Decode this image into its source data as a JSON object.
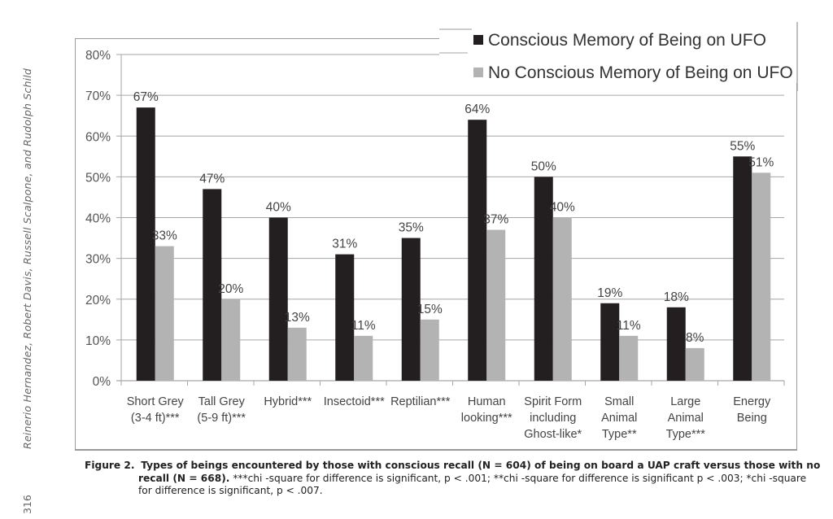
{
  "page": {
    "running_head": "Reinerio Hernandez, Robert Davis, Russell Scalpone, and Rudolph Schild",
    "page_number": "316"
  },
  "chart_data": {
    "type": "bar",
    "title": "",
    "xlabel": "",
    "ylabel": "",
    "ylim": [
      0,
      80
    ],
    "yticks": [
      0,
      10,
      20,
      30,
      40,
      50,
      60,
      70,
      80
    ],
    "ytick_labels": [
      "0%",
      "10%",
      "20%",
      "30%",
      "40%",
      "50%",
      "60%",
      "70%",
      "80%"
    ],
    "grid": true,
    "legend_position": "top-right",
    "categories": [
      [
        "Short Grey",
        "(3-4 ft)***"
      ],
      [
        "Tall Grey",
        "(5-9 ft)***"
      ],
      [
        "Hybrid***"
      ],
      [
        "Insectoid***"
      ],
      [
        "Reptilian***"
      ],
      [
        "Human",
        "looking***"
      ],
      [
        "Spirit Form",
        "including",
        "Ghost-like*"
      ],
      [
        "Small",
        "Animal",
        "Type**"
      ],
      [
        "Large",
        "Animal",
        "Type***"
      ],
      [
        "Energy",
        "Being"
      ]
    ],
    "series": [
      {
        "name": "Conscious Memory of Being on UFO",
        "color": "#231f20",
        "values": [
          67,
          47,
          40,
          31,
          35,
          64,
          50,
          19,
          18,
          55
        ],
        "labels": [
          "67%",
          "47%",
          "40%",
          "31%",
          "35%",
          "64%",
          "50%",
          "19%",
          "18%",
          "55%"
        ]
      },
      {
        "name": "No Conscious Memory of Being on UFO",
        "color": "#b3b3b3",
        "values": [
          33,
          20,
          13,
          11,
          15,
          37,
          40,
          11,
          8,
          51
        ],
        "labels": [
          "33%",
          "20%",
          "13%",
          "11%",
          "15%",
          "37%",
          "40%",
          "11%",
          "8%",
          "51%"
        ]
      }
    ]
  },
  "caption": {
    "label": "Figure 2.",
    "bold_line1": "Types of beings encountered by those with conscious recall (N = 604) of being on board a UAP craft versus those with no",
    "bold_line2": "recall (N = 668).",
    "text_line2": "***chi -square for difference is significant, p < .001; **chi -square for difference is significant p < .003; *chi -square",
    "text_line3": "for difference is significant, p < .007."
  }
}
